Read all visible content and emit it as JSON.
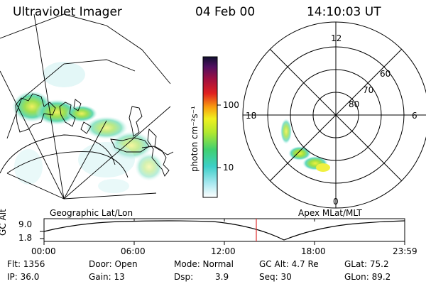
{
  "header": {
    "instrument": "Ultraviolet Imager",
    "date": "04 Feb 00",
    "time": "14:10:03 UT"
  },
  "colorbar": {
    "unit_label": "photon cm⁻²s⁻¹",
    "tick_labels": [
      "100",
      "10"
    ]
  },
  "left_panel": {
    "caption": "Geographic Lat/Lon"
  },
  "right_panel": {
    "caption": "Apex MLat/MLT",
    "mlt_labels": [
      "12",
      "18",
      "6",
      "0"
    ],
    "lat_labels": [
      "60",
      "70",
      "80"
    ]
  },
  "timeline": {
    "ylabel": "GC Alt",
    "ytick_labels": [
      "9.0",
      "1.8"
    ],
    "xtick_labels": [
      "00:00",
      "06:00",
      "12:00",
      "18:00",
      "23:59"
    ]
  },
  "status": {
    "flt": "Flt: 1356",
    "ip": "IP: 36.0",
    "door": "Door: Open",
    "gain": "Gain: 13",
    "mode": "Mode: Normal",
    "dsp_label": "Dsp:",
    "dsp_value": "3.9",
    "gc_alt": "GC Alt: 4.7 Re",
    "seq": "Seq: 30",
    "glat": "GLat: 75.2",
    "glon": "GLon: 89.2"
  }
}
